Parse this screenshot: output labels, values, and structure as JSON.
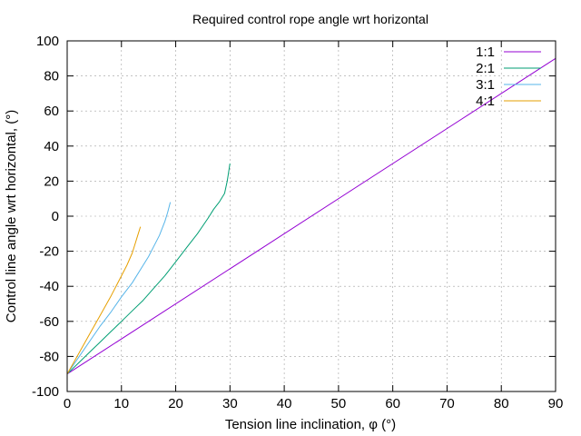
{
  "chart_data": {
    "type": "line",
    "title": "Required control rope angle wrt horizontal",
    "xlabel": "Tension line inclination, φ (°)",
    "ylabel": "Control line angle wrt horizontal, (°)",
    "xlim": [
      0,
      90
    ],
    "ylim": [
      -100,
      100
    ],
    "x_ticks": [
      "0",
      "10",
      "20",
      "30",
      "40",
      "50",
      "60",
      "70",
      "80",
      "90"
    ],
    "y_ticks": [
      "-100",
      "-80",
      "-60",
      "-40",
      "-20",
      "0",
      "20",
      "40",
      "60",
      "80",
      "100"
    ],
    "grid": true,
    "legend_position": "top-right",
    "series": [
      {
        "name": "1:1",
        "color": "#9400d3",
        "x": [
          0,
          90
        ],
        "y": [
          -90,
          90
        ]
      },
      {
        "name": "2:1",
        "color": "#009e73",
        "x": [
          0,
          2,
          4,
          6,
          8,
          10,
          12,
          14,
          16,
          18,
          20,
          22,
          24,
          26,
          27,
          28,
          29,
          29.5,
          30
        ],
        "y": [
          -90,
          -84,
          -78,
          -72,
          -66,
          -60,
          -54,
          -48,
          -41,
          -34,
          -26,
          -18,
          -10,
          -1,
          4,
          8,
          13,
          20,
          30
        ]
      },
      {
        "name": "3:1",
        "color": "#56b4e9",
        "x": [
          0,
          2,
          4,
          6,
          8,
          10,
          12,
          14,
          15,
          16,
          17,
          18,
          18.5,
          19
        ],
        "y": [
          -90,
          -81,
          -72,
          -63,
          -55,
          -46,
          -38,
          -28,
          -23,
          -17,
          -11,
          -3,
          2,
          8
        ]
      },
      {
        "name": "4:1",
        "color": "#e69f00",
        "x": [
          0,
          2,
          4,
          6,
          8,
          10,
          11,
          12,
          12.5,
          13,
          13.5
        ],
        "y": [
          -90,
          -79,
          -68,
          -57,
          -46,
          -34,
          -28,
          -21,
          -16,
          -11,
          -6
        ]
      }
    ]
  }
}
